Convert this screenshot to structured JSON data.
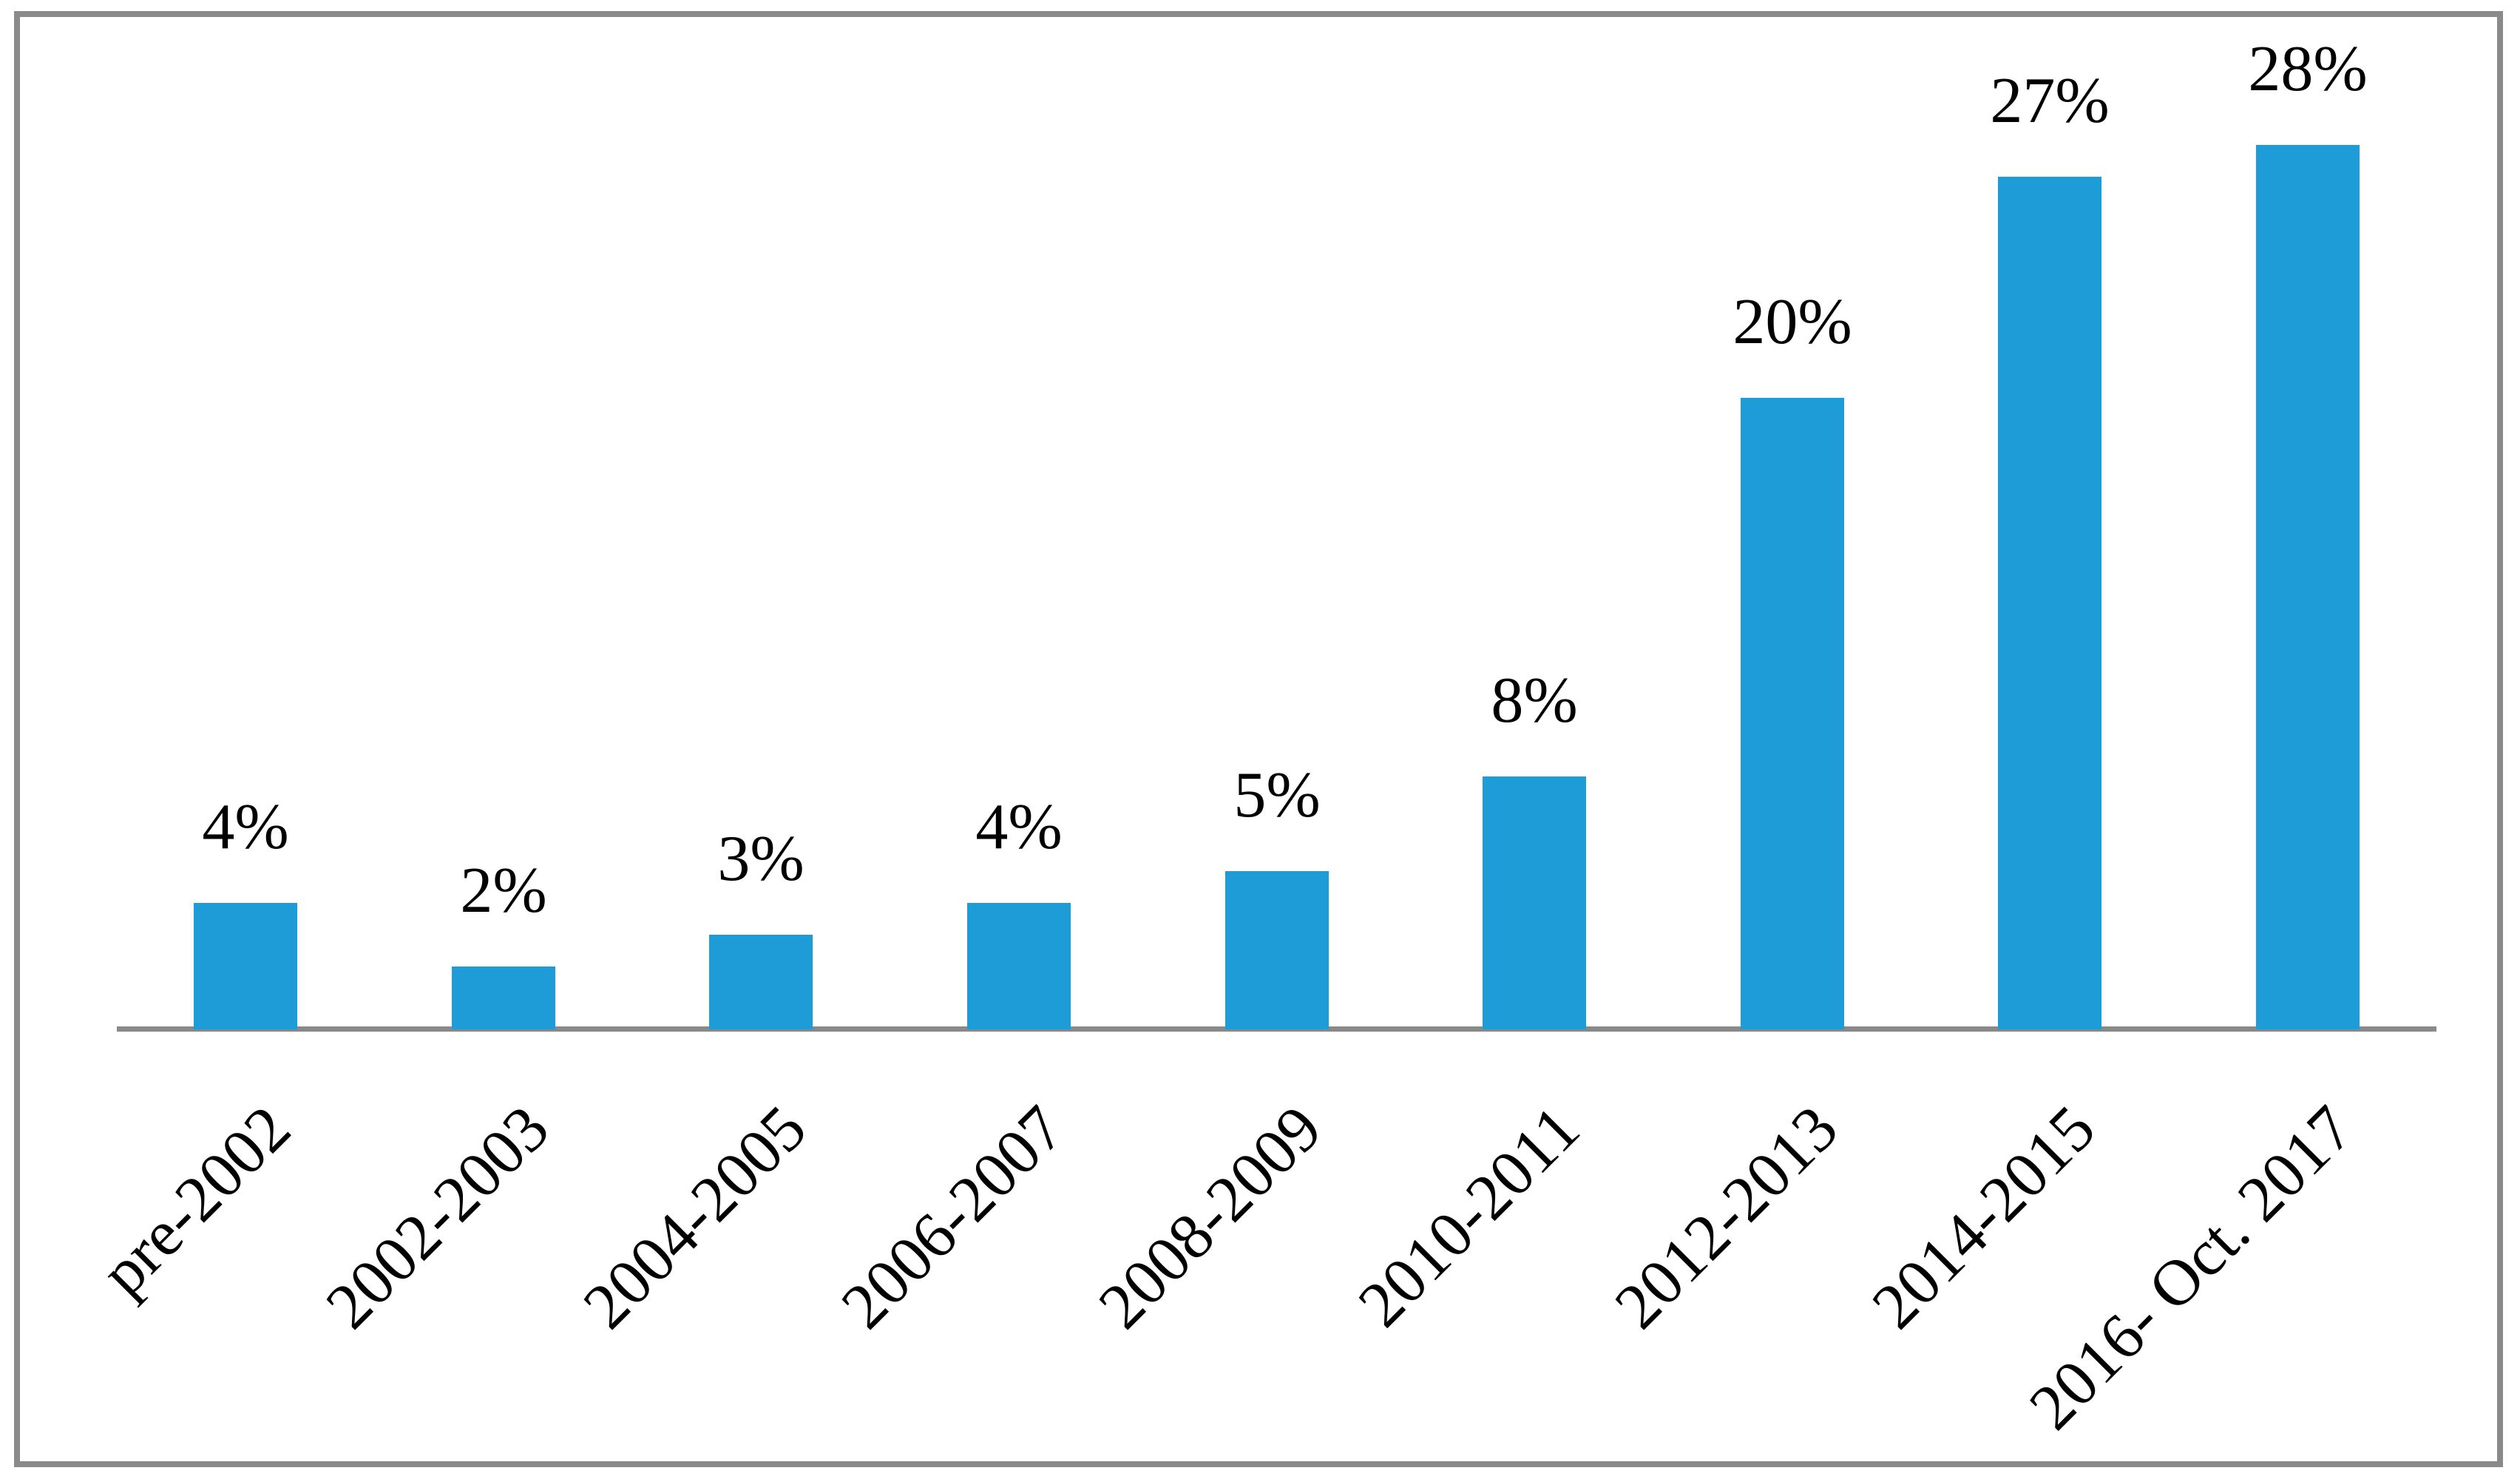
{
  "chart_data": {
    "type": "bar",
    "categories": [
      "pre-2002",
      "2002-2003",
      "2004-2005",
      "2006-2007",
      "2008-2009",
      "2010-2011",
      "2012-2013",
      "2014-2015",
      "2016- Oct. 2017"
    ],
    "values": [
      4,
      2,
      3,
      4,
      5,
      8,
      20,
      27,
      28
    ],
    "value_labels": [
      "4%",
      "2%",
      "3%",
      "4%",
      "5%",
      "8%",
      "20%",
      "27%",
      "28%"
    ],
    "title": "",
    "xlabel": "",
    "ylabel": "",
    "ylim": [
      0,
      28
    ],
    "grid": "off",
    "legend": "none",
    "bar_color": "#1E9CD7",
    "axis_color": "#898989",
    "frame_border_color": "#8A8A8A",
    "label_color": "#000000",
    "x_label_rotation_deg": -45
  }
}
